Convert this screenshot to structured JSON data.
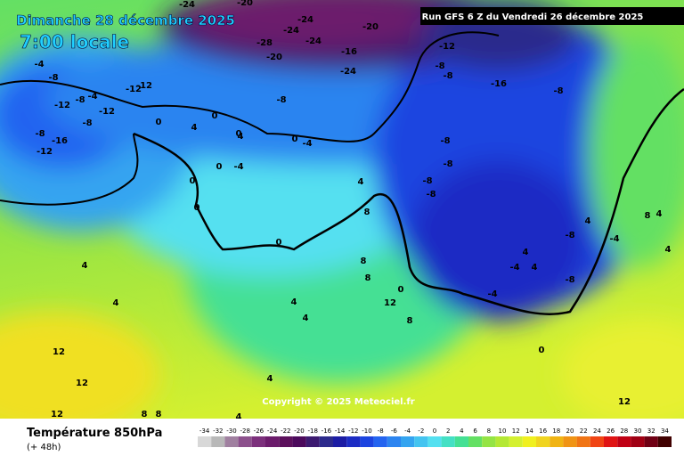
{
  "header": {
    "date": "Dimanche 28 décembre 2025",
    "time": "7:00 locale",
    "run": "Run GFS 6 Z du Vendredi 26 décembre 2025"
  },
  "copyright": "Copyright © 2025 Meteociel.fr",
  "footer": {
    "title": "Température 850hPa",
    "lead": "(+ 48h)"
  },
  "scale": {
    "values": [
      -34,
      -32,
      -30,
      -28,
      -26,
      -24,
      -22,
      -20,
      -18,
      -16,
      -14,
      -12,
      -10,
      -8,
      -6,
      -4,
      -2,
      0,
      2,
      4,
      6,
      8,
      10,
      12,
      14,
      16,
      18,
      20,
      22,
      24,
      26,
      28,
      30,
      32,
      34
    ],
    "colors": [
      "#d8d8d8",
      "#b8b8b8",
      "#a080a0",
      "#8c508c",
      "#7c307c",
      "#6c1c6c",
      "#5c105c",
      "#4c0a5c",
      "#3c1a70",
      "#2c2a8c",
      "#1c1ca4",
      "#1c2cc4",
      "#1c44e0",
      "#2464f0",
      "#2c84f0",
      "#34a4f0",
      "#44c4f0",
      "#54e0f0",
      "#44e0c4",
      "#44e094",
      "#64e064",
      "#94e444",
      "#b4e834",
      "#d4f030",
      "#f0f020",
      "#f0d420",
      "#f0b414",
      "#f09414",
      "#f07414",
      "#f04414",
      "#e01414",
      "#c00014",
      "#a00014",
      "#700014",
      "#400000"
    ]
  },
  "contour_labels": [
    -24,
    -24,
    -24,
    -20,
    -28,
    -24,
    -20,
    -16,
    -24,
    -20,
    -12,
    -8,
    -8,
    -16,
    -8,
    -4,
    -8,
    -12,
    -4,
    -12,
    -12,
    -8,
    -12,
    -8,
    -16,
    -12,
    -8,
    -8,
    0,
    4,
    0,
    0,
    -4,
    0,
    4,
    -4,
    0,
    0,
    0,
    0,
    -8,
    -8,
    -8,
    -8,
    -8,
    -4,
    4,
    8,
    8,
    12,
    8,
    4,
    4,
    4,
    4,
    4,
    8,
    0,
    4,
    -4,
    -8,
    0,
    4,
    4,
    12,
    12,
    12,
    8,
    8,
    4,
    12,
    4,
    4,
    -4,
    8
  ]
}
